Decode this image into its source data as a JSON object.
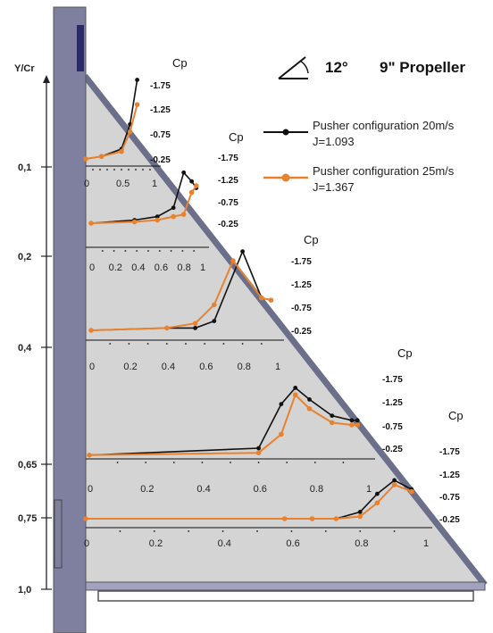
{
  "title": "9\" Propeller",
  "angle_label": "12°",
  "y_axis_label": "Y/Cr",
  "y_ticks": [
    "0,1",
    "0,2",
    "0,4",
    "0,65",
    "0,75",
    "1,0"
  ],
  "colors": {
    "pusher20": "#111111",
    "pusher25": "#E8822F",
    "wing_fill": "#d4d4d4",
    "body": "#7f7f9f",
    "edge": "#6c6f8a"
  },
  "legend": [
    {
      "line1": "Pusher configuration 20m/s",
      "line2": "J=1.093",
      "color": "#111111"
    },
    {
      "line1": "Pusher configuration 25m/s",
      "line2": "J=1.367",
      "color": "#E8822F"
    }
  ],
  "chart_data": [
    {
      "type": "line",
      "station": "0,1",
      "cp_label": "Cp",
      "cp_ticks": [
        "-1.75",
        "-1.25",
        "-0.75",
        "-0.25"
      ],
      "x_ticks": [
        "0",
        "0.5",
        "1"
      ],
      "series": [
        {
          "name": "Pusher configuration 20m/s",
          "x": [
            0,
            0.22,
            0.5,
            0.62,
            0.72
          ],
          "y": [
            -0.25,
            -0.3,
            -0.45,
            -0.95,
            -1.85
          ]
        },
        {
          "name": "Pusher configuration 25m/s",
          "x": [
            0,
            0.22,
            0.5,
            0.62,
            0.72
          ],
          "y": [
            -0.25,
            -0.3,
            -0.4,
            -0.8,
            -1.35
          ]
        }
      ]
    },
    {
      "type": "line",
      "station": "0,2",
      "cp_label": "Cp",
      "cp_ticks": [
        "-1.75",
        "-1.25",
        "-0.75",
        "-0.25"
      ],
      "x_ticks": [
        "0",
        "0.2",
        "0.4",
        "0.6",
        "0.8",
        "1"
      ],
      "series": [
        {
          "name": "Pusher configuration 20m/s",
          "x": [
            0,
            0.38,
            0.58,
            0.72,
            0.81,
            0.88,
            0.92
          ],
          "y": [
            -0.25,
            -0.32,
            -0.4,
            -0.6,
            -1.4,
            -1.2,
            -1.05
          ]
        },
        {
          "name": "Pusher configuration 25m/s",
          "x": [
            0,
            0.38,
            0.58,
            0.72,
            0.81,
            0.88,
            0.92
          ],
          "y": [
            -0.25,
            -0.28,
            -0.32,
            -0.4,
            -0.45,
            -0.95,
            -1.1
          ]
        }
      ]
    },
    {
      "type": "line",
      "station": "0,4",
      "cp_label": "Cp",
      "cp_ticks": [
        "-1.75",
        "-1.25",
        "-0.75",
        "-0.25"
      ],
      "x_ticks": [
        "0",
        "0.2",
        "0.4",
        "0.6",
        "0.8",
        "1"
      ],
      "series": [
        {
          "name": "Pusher configuration 20m/s",
          "x": [
            0,
            0.4,
            0.55,
            0.65,
            0.8,
            0.9,
            0.95
          ],
          "y": [
            -0.25,
            -0.3,
            -0.3,
            -0.45,
            -1.95,
            -0.95,
            -0.9
          ]
        },
        {
          "name": "Pusher configuration 25m/s",
          "x": [
            0,
            0.4,
            0.55,
            0.65,
            0.75,
            0.9,
            0.95
          ],
          "y": [
            -0.25,
            -0.3,
            -0.4,
            -0.8,
            -1.75,
            -0.95,
            -0.9
          ]
        }
      ]
    },
    {
      "type": "line",
      "station": "0,65",
      "cp_label": "Cp",
      "cp_ticks": [
        "-1.75",
        "-1.25",
        "-0.75",
        "-0.25"
      ],
      "x_ticks": [
        "0",
        "0.2",
        "0.4",
        "0.6",
        "0.8",
        "1"
      ],
      "series": [
        {
          "name": "Pusher configuration 20m/s",
          "x": [
            0,
            0.6,
            0.68,
            0.73,
            0.78,
            0.86,
            0.93,
            0.95
          ],
          "y": [
            -0.1,
            -0.25,
            -1.2,
            -1.55,
            -1.3,
            -0.95,
            -0.85,
            -0.85
          ]
        },
        {
          "name": "Pusher configuration 25m/s",
          "x": [
            0,
            0.6,
            0.68,
            0.73,
            0.78,
            0.86,
            0.93,
            0.95
          ],
          "y": [
            -0.1,
            -0.15,
            -0.55,
            -1.4,
            -1.1,
            -0.8,
            -0.75,
            -0.75
          ]
        }
      ]
    },
    {
      "type": "line",
      "station": "0,75",
      "cp_label": "Cp",
      "cp_ticks": [
        "-1.75",
        "-1.25",
        "-0.75",
        "-0.25"
      ],
      "x_ticks": [
        "0",
        "0.2",
        "0.4",
        "0.6",
        "0.8",
        "1"
      ],
      "series": [
        {
          "name": "Pusher configuration 20m/s",
          "x": [
            0,
            0.58,
            0.66,
            0.73,
            0.8,
            0.85,
            0.9,
            0.95
          ],
          "y": [
            -0.25,
            -0.25,
            -0.25,
            -0.25,
            -0.4,
            -0.8,
            -1.1,
            -0.9
          ]
        },
        {
          "name": "Pusher configuration 25m/s",
          "x": [
            0,
            0.58,
            0.66,
            0.73,
            0.8,
            0.85,
            0.9,
            0.95
          ],
          "y": [
            -0.25,
            -0.25,
            -0.25,
            -0.25,
            -0.3,
            -0.6,
            -1.0,
            -0.85
          ]
        }
      ]
    }
  ]
}
